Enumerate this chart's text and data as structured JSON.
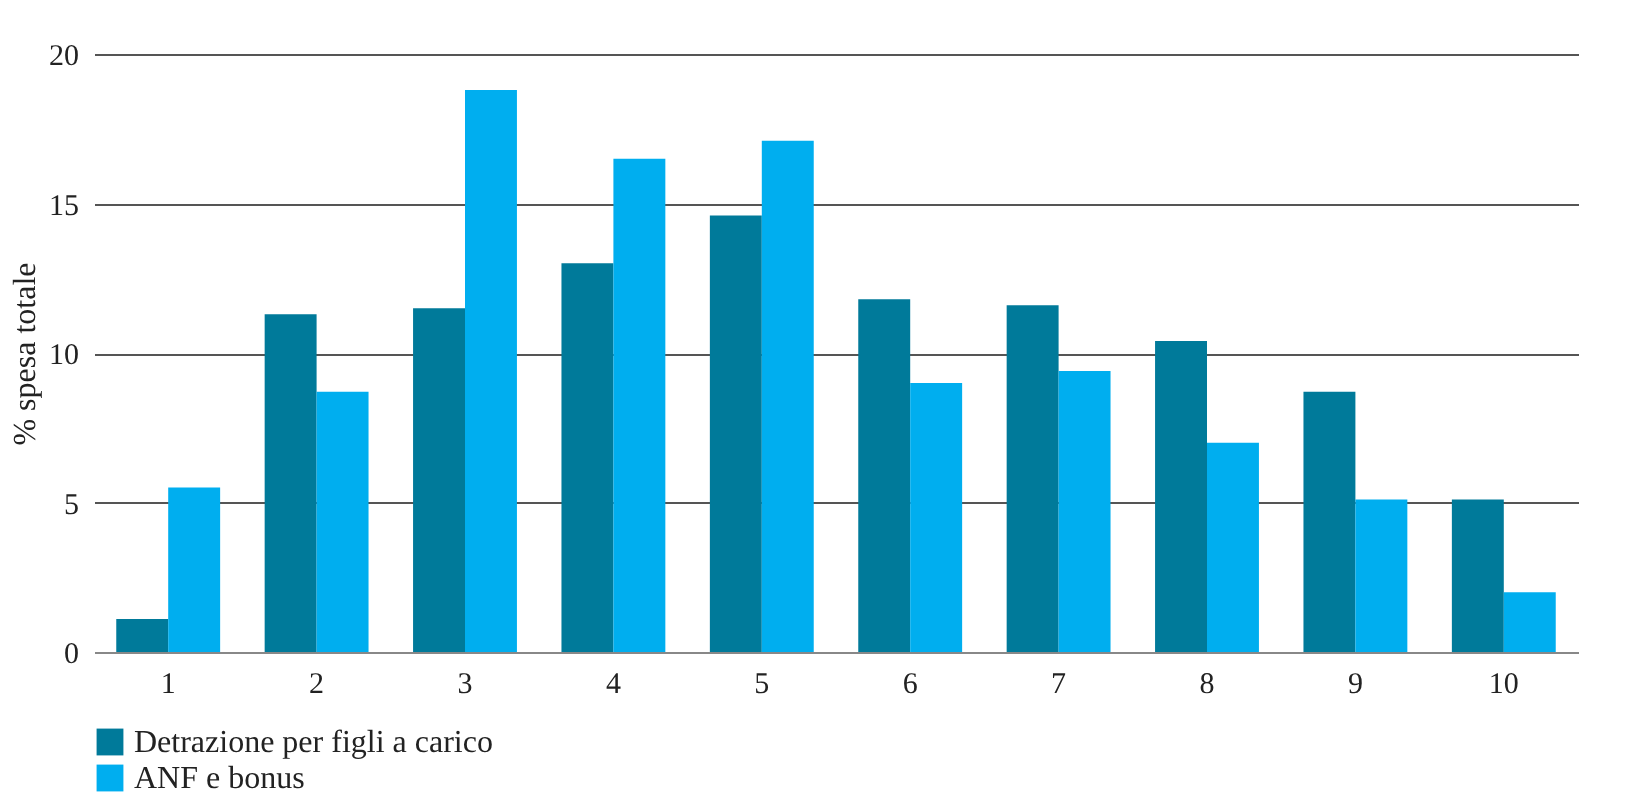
{
  "chart_data": {
    "type": "bar",
    "ylabel": "% spesa totale",
    "categories": [
      "1",
      "2",
      "3",
      "4",
      "5",
      "6",
      "7",
      "8",
      "9",
      "10"
    ],
    "series": [
      {
        "name": "Detrazione per figli a carico",
        "color": "#007a9a",
        "values": [
          1.1,
          11.3,
          11.5,
          13.0,
          14.6,
          11.8,
          11.6,
          10.4,
          8.7,
          5.1
        ]
      },
      {
        "name": "ANF e bonus",
        "color": "#00aeef",
        "values": [
          5.5,
          8.7,
          18.8,
          16.5,
          17.1,
          9.0,
          9.4,
          7.0,
          5.1,
          2.0
        ]
      }
    ],
    "ylim": [
      0,
      20
    ],
    "yticks": [
      0,
      5,
      10,
      15,
      20
    ],
    "grid": "y",
    "legend": "bottom"
  }
}
